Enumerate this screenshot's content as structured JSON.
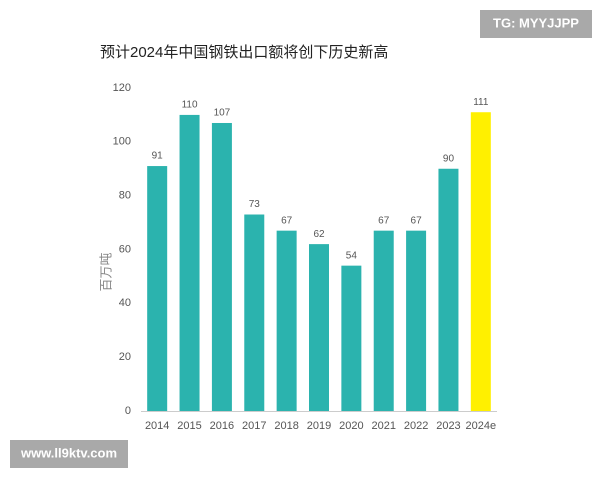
{
  "chart_data": {
    "type": "bar",
    "title": "预计2024年中国钢铁出口额将创下历史新高",
    "y_label": "百万吨",
    "categories": [
      "2014",
      "2015",
      "2016",
      "2017",
      "2018",
      "2019",
      "2020",
      "2021",
      "2022",
      "2023",
      "2024e"
    ],
    "values": [
      91,
      110,
      107,
      73,
      67,
      62,
      54,
      67,
      67,
      90,
      111
    ],
    "colors": [
      "#2bb3ae",
      "#2bb3ae",
      "#2bb3ae",
      "#2bb3ae",
      "#2bb3ae",
      "#2bb3ae",
      "#2bb3ae",
      "#2bb3ae",
      "#2bb3ae",
      "#2bb3ae",
      "#fff000"
    ],
    "ylim": [
      0,
      120
    ],
    "yticks": [
      0,
      20,
      40,
      60,
      80,
      100,
      120
    ],
    "grid": false
  },
  "watermarks": {
    "top": "TG: MYYJJPP",
    "bottom": "www.ll9ktv.com"
  }
}
